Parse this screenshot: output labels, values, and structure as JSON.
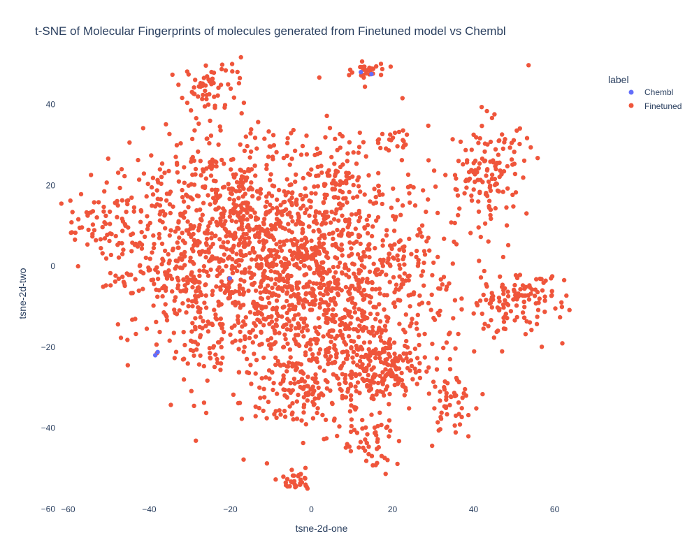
{
  "chart_data": {
    "type": "scatter",
    "title": "t-SNE of Molecular Fingerprints of molecules generated from Finetuned model vs Chembl",
    "xlabel": "tsne-2d-one",
    "ylabel": "tsne-2d-two",
    "xlim": [
      -63,
      68
    ],
    "ylim": [
      -62,
      52
    ],
    "xticks": [
      -60,
      -40,
      -20,
      0,
      20,
      40,
      60
    ],
    "yticks": [
      -60,
      -40,
      -20,
      0,
      20,
      40
    ],
    "xtick_labels": [
      "−60",
      "−40",
      "−20",
      "0",
      "20",
      "40",
      "60"
    ],
    "ytick_labels": [
      "−60",
      "−40",
      "−20",
      "0",
      "20",
      "40"
    ],
    "grid": false,
    "legend": {
      "title": "label",
      "position": "top-right",
      "entries": [
        "Chembl",
        "Finetuned"
      ]
    },
    "series": [
      {
        "name": "Chembl",
        "color": "#636efa",
        "x": [
          -38.5,
          -37.9,
          12.2,
          14.8,
          -20.1
        ],
        "y": [
          -22.0,
          -21.2,
          48.0,
          47.5,
          -3.0
        ]
      },
      {
        "name": "Finetuned",
        "color": "#ef553b",
        "clusters": [
          {
            "cx": -12,
            "cy": 2,
            "sx": 14,
            "sy": 15,
            "n": 950
          },
          {
            "cx": 8,
            "cy": -8,
            "sx": 12,
            "sy": 15,
            "n": 700
          },
          {
            "cx": -24,
            "cy": 13,
            "sx": 10,
            "sy": 8,
            "n": 200
          },
          {
            "cx": -30,
            "cy": -8,
            "sx": 6,
            "sy": 8,
            "n": 100
          },
          {
            "cx": 16,
            "cy": -25,
            "sx": 5,
            "sy": 4,
            "n": 140
          },
          {
            "cx": 0,
            "cy": -30,
            "sx": 6,
            "sy": 5,
            "n": 110
          },
          {
            "cx": -25,
            "cy": 45,
            "sx": 4,
            "sy": 4,
            "n": 60
          },
          {
            "cx": 14,
            "cy": 48,
            "sx": 2,
            "sy": 1.5,
            "n": 30
          },
          {
            "cx": -4,
            "cy": -53,
            "sx": 2,
            "sy": 1.5,
            "n": 30
          },
          {
            "cx": 44,
            "cy": 24,
            "sx": 5,
            "sy": 6,
            "n": 120
          },
          {
            "cx": 48,
            "cy": -10,
            "sx": 6,
            "sy": 4,
            "n": 90
          },
          {
            "cx": 34,
            "cy": -33,
            "sx": 3,
            "sy": 4,
            "n": 50
          },
          {
            "cx": 14,
            "cy": -45,
            "sx": 4,
            "sy": 3,
            "n": 40
          },
          {
            "cx": -52,
            "cy": 11,
            "sx": 4,
            "sy": 4,
            "n": 60
          },
          {
            "cx": -47,
            "cy": -3,
            "sx": 2,
            "sy": 2,
            "n": 15
          },
          {
            "cx": 5,
            "cy": 21,
            "sx": 3,
            "sy": 2,
            "n": 30
          },
          {
            "cx": 21,
            "cy": 31,
            "sx": 2,
            "sy": 1.5,
            "n": 20
          },
          {
            "cx": 57,
            "cy": -6,
            "sx": 3,
            "sy": 3,
            "n": 30
          },
          {
            "cx": -39,
            "cy": 10,
            "sx": 5,
            "sy": 9,
            "n": 60
          },
          {
            "cx": 30,
            "cy": 5,
            "sx": 10,
            "sy": 12,
            "n": 80
          }
        ]
      }
    ]
  }
}
